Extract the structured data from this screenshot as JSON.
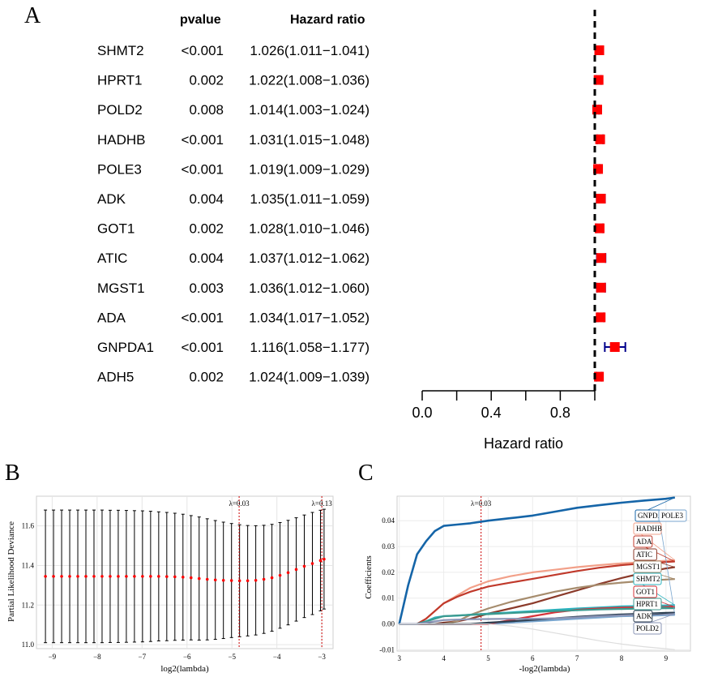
{
  "panel_letters": [
    "A",
    "B",
    "C"
  ],
  "chart_data": [
    {
      "type": "forest",
      "panel": "A",
      "columns": {
        "pvalue": "pvalue",
        "hr": "Hazard ratio"
      },
      "xlabel": "Hazard ratio",
      "xlim": [
        0.0,
        1.2
      ],
      "xticks": [
        "0.0",
        "0.4",
        "0.8"
      ],
      "reference_line": 1.0,
      "colors": {
        "point": "#ff0000",
        "ci": "#00008b",
        "ref": "#000000"
      },
      "rows": [
        {
          "gene": "SHMT2",
          "pvalue": "<0.001",
          "hr_text": "1.026(1.011−1.041)",
          "hr": 1.026,
          "low": 1.011,
          "high": 1.041
        },
        {
          "gene": "HPRT1",
          "pvalue": "0.002",
          "hr_text": "1.022(1.008−1.036)",
          "hr": 1.022,
          "low": 1.008,
          "high": 1.036
        },
        {
          "gene": "POLD2",
          "pvalue": "0.008",
          "hr_text": "1.014(1.003−1.024)",
          "hr": 1.014,
          "low": 1.003,
          "high": 1.024
        },
        {
          "gene": "HADHB",
          "pvalue": "<0.001",
          "hr_text": "1.031(1.015−1.048)",
          "hr": 1.031,
          "low": 1.015,
          "high": 1.048
        },
        {
          "gene": "POLE3",
          "pvalue": "<0.001",
          "hr_text": "1.019(1.009−1.029)",
          "hr": 1.019,
          "low": 1.009,
          "high": 1.029
        },
        {
          "gene": "ADK",
          "pvalue": "0.004",
          "hr_text": "1.035(1.011−1.059)",
          "hr": 1.035,
          "low": 1.011,
          "high": 1.059
        },
        {
          "gene": "GOT1",
          "pvalue": "0.002",
          "hr_text": "1.028(1.010−1.046)",
          "hr": 1.028,
          "low": 1.01,
          "high": 1.046
        },
        {
          "gene": "ATIC",
          "pvalue": "0.004",
          "hr_text": "1.037(1.012−1.062)",
          "hr": 1.037,
          "low": 1.012,
          "high": 1.062
        },
        {
          "gene": "MGST1",
          "pvalue": "0.003",
          "hr_text": "1.036(1.012−1.060)",
          "hr": 1.036,
          "low": 1.012,
          "high": 1.06
        },
        {
          "gene": "ADA",
          "pvalue": "<0.001",
          "hr_text": "1.034(1.017−1.052)",
          "hr": 1.034,
          "low": 1.017,
          "high": 1.052
        },
        {
          "gene": "GNPDA1",
          "pvalue": "<0.001",
          "hr_text": "1.116(1.058−1.177)",
          "hr": 1.116,
          "low": 1.058,
          "high": 1.177
        },
        {
          "gene": "ADH5",
          "pvalue": "0.002",
          "hr_text": "1.024(1.009−1.039)",
          "hr": 1.024,
          "low": 1.009,
          "high": 1.039
        }
      ]
    },
    {
      "type": "errorbar",
      "panel": "B",
      "xlabel": "log2(lambda)",
      "ylabel": "Partial Likelihood Deviance",
      "xlim": [
        -9.35,
        -2.75
      ],
      "ylim": [
        10.98,
        11.75
      ],
      "xticks": [
        -9,
        -8,
        -7,
        -6,
        -5,
        -4,
        -3
      ],
      "xtick_labels": [
        "−9",
        "−8",
        "−7",
        "−6",
        "−5",
        "−4",
        "−3"
      ],
      "yticks": [
        11.0,
        11.2,
        11.4,
        11.6
      ],
      "ytick_labels": [
        "11.0",
        "11.2",
        "11.4",
        "11.6"
      ],
      "grid": true,
      "vlines": [
        {
          "x": -4.84,
          "label": "λ=0.03"
        },
        {
          "x": -3.0,
          "label": "λ=0.13"
        }
      ],
      "colors": {
        "point": "#ff0000",
        "bar": "#000000",
        "vline": "#cc0000"
      },
      "x": [
        -9.15,
        -8.97,
        -8.79,
        -8.61,
        -8.43,
        -8.25,
        -8.07,
        -7.89,
        -7.71,
        -7.53,
        -7.35,
        -7.17,
        -6.99,
        -6.81,
        -6.63,
        -6.45,
        -6.27,
        -6.09,
        -5.91,
        -5.73,
        -5.55,
        -5.37,
        -5.19,
        -5.01,
        -4.83,
        -4.65,
        -4.47,
        -4.29,
        -4.11,
        -3.93,
        -3.75,
        -3.57,
        -3.39,
        -3.21,
        -3.03,
        -2.95
      ],
      "mean": [
        11.345,
        11.345,
        11.345,
        11.345,
        11.345,
        11.345,
        11.345,
        11.345,
        11.345,
        11.345,
        11.345,
        11.345,
        11.345,
        11.345,
        11.345,
        11.344,
        11.343,
        11.341,
        11.338,
        11.334,
        11.33,
        11.327,
        11.325,
        11.324,
        11.323,
        11.323,
        11.325,
        11.33,
        11.338,
        11.35,
        11.364,
        11.38,
        11.396,
        11.41,
        11.425,
        11.432
      ],
      "upper": [
        11.68,
        11.68,
        11.68,
        11.68,
        11.68,
        11.68,
        11.68,
        11.68,
        11.679,
        11.679,
        11.678,
        11.677,
        11.676,
        11.674,
        11.671,
        11.668,
        11.664,
        11.659,
        11.652,
        11.645,
        11.636,
        11.627,
        11.619,
        11.612,
        11.606,
        11.602,
        11.601,
        11.603,
        11.608,
        11.617,
        11.628,
        11.641,
        11.655,
        11.668,
        11.679,
        11.684
      ],
      "lower": [
        11.01,
        11.01,
        11.01,
        11.01,
        11.01,
        11.01,
        11.01,
        11.01,
        11.011,
        11.011,
        11.012,
        11.013,
        11.014,
        11.016,
        11.019,
        11.02,
        11.022,
        11.023,
        11.024,
        11.023,
        11.024,
        11.027,
        11.031,
        11.036,
        11.04,
        11.044,
        11.049,
        11.057,
        11.068,
        11.083,
        11.1,
        11.119,
        11.137,
        11.152,
        11.171,
        11.18
      ]
    },
    {
      "type": "line",
      "panel": "C",
      "xlabel": "-log2(lambda)",
      "ylabel": "Coefficients",
      "xlim": [
        2.95,
        9.55
      ],
      "ylim": [
        -0.0105,
        0.0495
      ],
      "xticks": [
        3,
        4,
        5,
        6,
        7,
        8,
        9
      ],
      "xtick_labels": [
        "3",
        "4",
        "5",
        "6",
        "7",
        "8",
        "9"
      ],
      "yticks": [
        -0.01,
        0.0,
        0.01,
        0.02,
        0.03,
        0.04
      ],
      "ytick_labels": [
        "-0.01",
        "0.00",
        "0.01",
        "0.02",
        "0.03",
        "0.04"
      ],
      "grid": true,
      "vline": {
        "x": 4.84,
        "label": "λ=0.03"
      },
      "x": [
        3.0,
        3.2,
        3.4,
        3.6,
        3.8,
        4.0,
        4.3,
        4.6,
        5.0,
        5.5,
        6.0,
        6.5,
        7.0,
        7.5,
        8.0,
        8.5,
        9.0,
        9.2
      ],
      "series": [
        {
          "name": "GNPDA1",
          "color": "#1565a8",
          "label_box": "GNPDA1",
          "values": [
            0.0,
            0.015,
            0.027,
            0.032,
            0.036,
            0.038,
            0.0385,
            0.039,
            0.04,
            0.041,
            0.042,
            0.0435,
            0.045,
            0.046,
            0.047,
            0.0478,
            0.0485,
            0.049
          ]
        },
        {
          "name": "POLE3",
          "color": "#7aa6cf",
          "label_box": "POLE3",
          "values": [
            0,
            0,
            0,
            0,
            0,
            0,
            0,
            0,
            0,
            0.0005,
            0.001,
            0.0015,
            0.002,
            0.0025,
            0.003,
            0.0032,
            0.0034,
            0.0035
          ]
        },
        {
          "name": "HADHB",
          "color": "#f2a089",
          "label_box": "HADHB",
          "values": [
            0,
            0,
            0,
            0.002,
            0.005,
            0.008,
            0.011,
            0.014,
            0.0165,
            0.0185,
            0.02,
            0.021,
            0.022,
            0.0228,
            0.0235,
            0.024,
            0.0245,
            0.0247
          ]
        },
        {
          "name": "ADA",
          "color": "#c0392b",
          "label_box": "ADA",
          "values": [
            0,
            0,
            0,
            0.002,
            0.005,
            0.008,
            0.0105,
            0.0125,
            0.0145,
            0.016,
            0.0175,
            0.019,
            0.0205,
            0.0218,
            0.0228,
            0.0235,
            0.024,
            0.0242
          ]
        },
        {
          "name": "ATIC",
          "color": "#8b3a2a",
          "label_box": "ATIC",
          "values": [
            0,
            0,
            0,
            0,
            0,
            0.0005,
            0.001,
            0.002,
            0.004,
            0.006,
            0.008,
            0.0105,
            0.013,
            0.0155,
            0.0178,
            0.0198,
            0.0215,
            0.022
          ]
        },
        {
          "name": "MGST1",
          "color": "#a68c6d",
          "label_box": "MGST1",
          "values": [
            0,
            0,
            0,
            0,
            0,
            0,
            0.001,
            0.0035,
            0.006,
            0.0085,
            0.0105,
            0.0125,
            0.014,
            0.0152,
            0.016,
            0.0167,
            0.0172,
            0.0174
          ]
        },
        {
          "name": "SHMT2",
          "color": "#2bb3bf",
          "label_box": "SHMT2",
          "values": [
            0,
            0,
            0,
            0.001,
            0.0025,
            0.003,
            0.0032,
            0.0036,
            0.004,
            0.0045,
            0.005,
            0.0055,
            0.006,
            0.0064,
            0.0068,
            0.007,
            0.0072,
            0.0073
          ]
        },
        {
          "name": "GOT1",
          "color": "#d6333a",
          "label_box": "GOT1",
          "values": [
            0,
            0,
            0,
            0,
            0,
            0,
            0,
            0,
            0,
            0.0015,
            0.003,
            0.0045,
            0.0055,
            0.006,
            0.0063,
            0.0065,
            0.0066,
            0.0066
          ]
        },
        {
          "name": "HPRT1",
          "color": "#3a9a8f",
          "label_box": "HPRT1",
          "values": [
            0,
            0,
            0,
            0.001,
            0.002,
            0.003,
            0.0033,
            0.0035,
            0.0038,
            0.0042,
            0.0046,
            0.005,
            0.0053,
            0.0056,
            0.0058,
            0.006,
            0.0061,
            0.0061
          ]
        },
        {
          "name": "ADK",
          "color": "#2c3e50",
          "label_box": "ADK",
          "values": [
            0,
            0,
            0,
            0,
            0,
            0,
            0,
            0,
            0.0005,
            0.001,
            0.0016,
            0.0022,
            0.0028,
            0.0033,
            0.0037,
            0.004,
            0.0043,
            0.0044
          ]
        },
        {
          "name": "POLD2",
          "color": "#8a94b5",
          "label_box": "POLD2",
          "values": [
            0,
            0,
            0,
            0.0005,
            0.001,
            0.0015,
            0.0017,
            0.0018,
            0.0019,
            0.002,
            0.002,
            0.0022,
            0.0025,
            0.003,
            0.0033,
            0.0036,
            0.0038,
            0.0039
          ]
        },
        {
          "name": "ADH5",
          "color": "#dddddd",
          "label_box": "",
          "values": [
            0,
            0,
            0,
            0,
            0,
            0,
            0,
            0,
            0,
            -0.0008,
            -0.002,
            -0.0035,
            -0.005,
            -0.0065,
            -0.0078,
            -0.0088,
            -0.0096,
            -0.01
          ]
        }
      ]
    }
  ]
}
